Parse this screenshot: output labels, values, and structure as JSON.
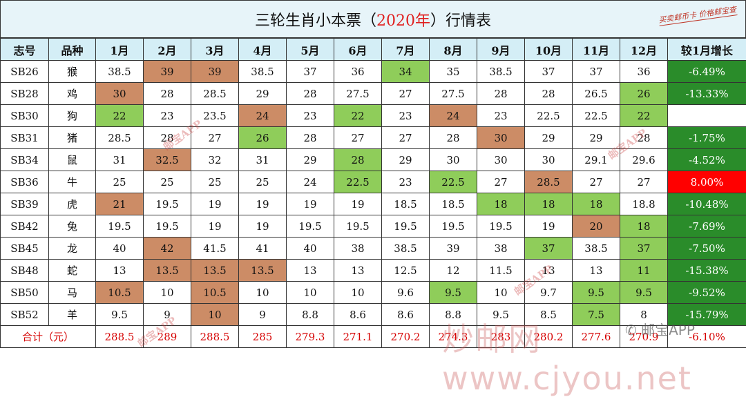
{
  "title": {
    "prefix": "三轮生肖小本票（",
    "year": "2020年",
    "suffix": "）行情表"
  },
  "stamp": "买卖邮币卡 价格邮宝查",
  "headers": [
    "志号",
    "品种",
    "1月",
    "2月",
    "3月",
    "4月",
    "5月",
    "6月",
    "7月",
    "8月",
    "9月",
    "10月",
    "11月",
    "12月",
    "较1月增长"
  ],
  "rows": [
    {
      "code": "SB26",
      "animal": "猴",
      "values": [
        "38.5",
        "39",
        "39",
        "38.5",
        "37",
        "36",
        "34",
        "35",
        "38.5",
        "37",
        "37",
        "36"
      ],
      "growth": "-6.49%",
      "growth_type": "green",
      "hl": {
        "1": "o",
        "2": "o",
        "6": "g"
      }
    },
    {
      "code": "SB28",
      "animal": "鸡",
      "values": [
        "30",
        "28",
        "28.5",
        "29",
        "28",
        "27.5",
        "27",
        "27.5",
        "28",
        "28",
        "26.5",
        "26"
      ],
      "growth": "-13.33%",
      "growth_type": "green",
      "hl": {
        "0": "o",
        "11": "g"
      }
    },
    {
      "code": "SB30",
      "animal": "狗",
      "values": [
        "22",
        "23",
        "23.5",
        "24",
        "23",
        "22",
        "23",
        "24",
        "23",
        "22.5",
        "22.5",
        "22"
      ],
      "growth": "",
      "growth_type": "empty",
      "hl": {
        "0": "g",
        "3": "o",
        "5": "g",
        "7": "o",
        "11": "g"
      }
    },
    {
      "code": "SB31",
      "animal": "猪",
      "values": [
        "28.5",
        "28",
        "27",
        "26",
        "28",
        "27",
        "27",
        "28",
        "30",
        "29",
        "29",
        "28"
      ],
      "growth": "-1.75%",
      "growth_type": "green",
      "hl": {
        "3": "g",
        "8": "o"
      }
    },
    {
      "code": "SB34",
      "animal": "鼠",
      "values": [
        "31",
        "32.5",
        "32",
        "31",
        "29",
        "28",
        "29",
        "30",
        "30",
        "30",
        "29.1",
        "29.6"
      ],
      "growth": "-4.52%",
      "growth_type": "green",
      "hl": {
        "1": "o",
        "5": "g"
      }
    },
    {
      "code": "SB36",
      "animal": "牛",
      "values": [
        "25",
        "25",
        "25",
        "25",
        "24",
        "22.5",
        "23",
        "22.5",
        "27",
        "28.5",
        "27",
        "27"
      ],
      "growth": "8.00%",
      "growth_type": "red",
      "hl": {
        "5": "g",
        "7": "g",
        "9": "o"
      }
    },
    {
      "code": "SB39",
      "animal": "虎",
      "values": [
        "21",
        "19.5",
        "19",
        "19",
        "19",
        "19",
        "18.5",
        "18.5",
        "18",
        "18",
        "18",
        "18.8"
      ],
      "growth": "-10.48%",
      "growth_type": "green",
      "hl": {
        "0": "o",
        "8": "g",
        "9": "g",
        "10": "g"
      }
    },
    {
      "code": "SB42",
      "animal": "兔",
      "values": [
        "19.5",
        "19.5",
        "19",
        "19",
        "19.5",
        "19.5",
        "19.5",
        "19.5",
        "19.5",
        "19",
        "20",
        "18"
      ],
      "growth": "-7.69%",
      "growth_type": "green",
      "hl": {
        "10": "o",
        "11": "g"
      }
    },
    {
      "code": "SB45",
      "animal": "龙",
      "values": [
        "40",
        "42",
        "41.5",
        "41",
        "40",
        "38",
        "38.5",
        "39",
        "38",
        "37",
        "38.5",
        "37"
      ],
      "growth": "-7.50%",
      "growth_type": "green",
      "hl": {
        "1": "o",
        "9": "g",
        "11": "g"
      }
    },
    {
      "code": "SB48",
      "animal": "蛇",
      "values": [
        "13",
        "13.5",
        "13.5",
        "13.5",
        "13",
        "13",
        "12.5",
        "12",
        "11.5",
        "13",
        "13",
        "11"
      ],
      "growth": "-15.38%",
      "growth_type": "green",
      "hl": {
        "1": "o",
        "2": "o",
        "3": "o",
        "11": "g"
      }
    },
    {
      "code": "SB50",
      "animal": "马",
      "values": [
        "10.5",
        "10",
        "10.5",
        "10",
        "10",
        "10",
        "9.6",
        "9.5",
        "10",
        "9.7",
        "9.5",
        "9.5"
      ],
      "growth": "-9.52%",
      "growth_type": "green",
      "hl": {
        "0": "o",
        "2": "o",
        "7": "g",
        "10": "g",
        "11": "g"
      }
    },
    {
      "code": "SB52",
      "animal": "羊",
      "values": [
        "9.5",
        "9",
        "10",
        "9",
        "8.8",
        "8.6",
        "8.6",
        "8.8",
        "9.5",
        "8.5",
        "7.5",
        "8"
      ],
      "growth": "-15.79%",
      "growth_type": "green",
      "hl": {
        "2": "o",
        "10": "g"
      }
    }
  ],
  "total": {
    "label": "合计（元）",
    "values": [
      "288.5",
      "289",
      "288.5",
      "285",
      "279.3",
      "271.1",
      "270.2",
      "274.3",
      "283",
      "280.2",
      "277.6",
      "270.9"
    ],
    "growth": "-6.10%"
  },
  "watermarks": {
    "small": "邮宝APP",
    "big": "炒邮网 www.cjyou.net",
    "wechat": "邮宝APP"
  },
  "colors": {
    "header_bg": "#d4eef6",
    "title_bg": "#e7f4f9",
    "highlight_high": "#cc8c66",
    "highlight_low": "#8fcd5a",
    "growth_negative": "#2a8c2a",
    "growth_positive": "#ff0000",
    "total_text": "#d60000"
  }
}
